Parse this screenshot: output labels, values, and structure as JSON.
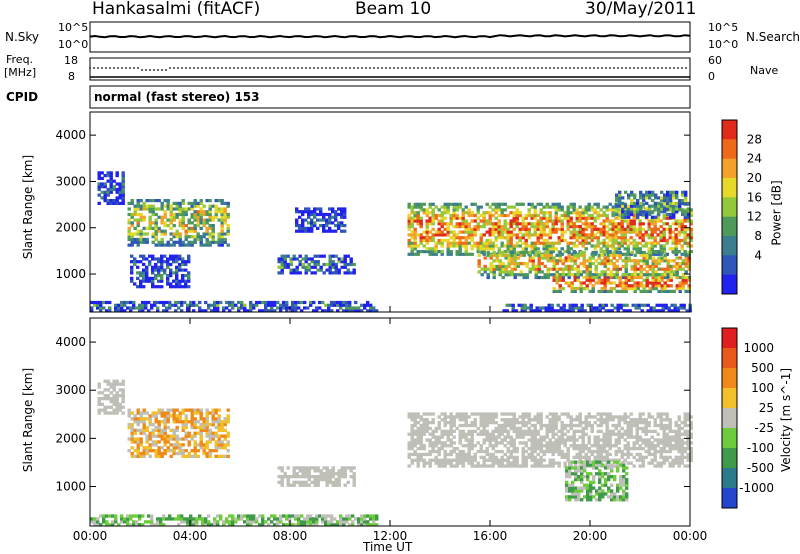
{
  "header": {
    "station": "Hankasalmi (fitACF)",
    "beam": "Beam 10",
    "date": "30/May/2011"
  },
  "panels": {
    "noise": {
      "left_label": "N.Sky",
      "right_label": "N.Search",
      "left_ticks": [
        "10^5",
        "10^0"
      ],
      "right_ticks": [
        "10^5",
        "10^0"
      ]
    },
    "freq": {
      "left_label_1": "Freq.",
      "left_label_2": "[MHz]",
      "right_label": "Nave",
      "left_ticks": [
        "18",
        "8"
      ],
      "right_ticks": [
        "60",
        "0"
      ]
    },
    "cpid": {
      "label": "CPID",
      "text": "normal (fast stereo) 153"
    }
  },
  "chart_data": [
    {
      "type": "heatmap",
      "name": "power",
      "xlabel": "",
      "ylabel": "Slant Range [km]",
      "x_range_hours": [
        0,
        24
      ],
      "ylim": [
        180,
        4500
      ],
      "y_ticks": [
        "4000",
        "3000",
        "2000",
        "1000"
      ],
      "colorbar": {
        "label": "Power [dB]",
        "ticks": [
          "28",
          "24",
          "20",
          "16",
          "12",
          "8",
          "4"
        ],
        "colors": [
          "#2222ee",
          "#2f55b8",
          "#3b7f8f",
          "#4f9a5a",
          "#93c83a",
          "#e7d92a",
          "#f2a12a",
          "#ee6a1a",
          "#e02a1a"
        ]
      },
      "echo_regions": [
        {
          "t0": 0.3,
          "t1": 1.3,
          "r0": 2500,
          "r1": 3200,
          "level": 0.15
        },
        {
          "t0": 1.5,
          "t1": 5.5,
          "r0": 1600,
          "r1": 2600,
          "level": 0.55
        },
        {
          "t0": 1.6,
          "t1": 4.0,
          "r0": 700,
          "r1": 1400,
          "level": 0.15
        },
        {
          "t0": 7.5,
          "t1": 10.5,
          "r0": 1000,
          "r1": 1400,
          "level": 0.25
        },
        {
          "t0": 8.2,
          "t1": 10.2,
          "r0": 1900,
          "r1": 2400,
          "level": 0.1
        },
        {
          "t0": 12.7,
          "t1": 24.0,
          "r0": 1400,
          "r1": 2500,
          "level": 0.75
        },
        {
          "t0": 15.5,
          "t1": 24.0,
          "r0": 900,
          "r1": 1500,
          "level": 0.65
        },
        {
          "t0": 18.5,
          "t1": 24.0,
          "r0": 600,
          "r1": 1000,
          "level": 0.8
        },
        {
          "t0": 21.0,
          "t1": 24.0,
          "r0": 2200,
          "r1": 2800,
          "level": 0.35
        },
        {
          "t0": 0.0,
          "t1": 11.5,
          "r0": 180,
          "r1": 420,
          "level": 0.2
        },
        {
          "t0": 16.5,
          "t1": 24.0,
          "r0": 180,
          "r1": 350,
          "level": 0.15
        }
      ]
    },
    {
      "type": "heatmap",
      "name": "velocity",
      "xlabel": "Time UT",
      "ylabel": "Slant Range [km]",
      "x_range_hours": [
        0,
        24
      ],
      "ylim": [
        180,
        4500
      ],
      "x_ticks": [
        "00:00",
        "04:00",
        "08:00",
        "12:00",
        "16:00",
        "20:00",
        "00:00"
      ],
      "y_ticks": [
        "4000",
        "3000",
        "2000",
        "1000"
      ],
      "colorbar": {
        "label": "Velocity [m s^-1]",
        "ticks": [
          "1000",
          "500",
          "100",
          "25",
          "-25",
          "-100",
          "-500",
          "-1000"
        ],
        "colors": [
          "#2545cc",
          "#2d7a8a",
          "#3f9a4a",
          "#6ccc3c",
          "#bfbfb8",
          "#f2c02a",
          "#ef8a1a",
          "#e85a1a",
          "#e02020"
        ]
      },
      "echo_regions": [
        {
          "t0": 0.3,
          "t1": 1.3,
          "r0": 2500,
          "r1": 3200,
          "level": "gray"
        },
        {
          "t0": 1.5,
          "t1": 5.5,
          "r0": 1600,
          "r1": 2600,
          "level": "orange"
        },
        {
          "t0": 7.5,
          "t1": 10.5,
          "r0": 1000,
          "r1": 1400,
          "level": "gray"
        },
        {
          "t0": 12.7,
          "t1": 24.0,
          "r0": 1400,
          "r1": 2500,
          "level": "gray"
        },
        {
          "t0": 19.0,
          "t1": 21.5,
          "r0": 700,
          "r1": 1500,
          "level": "green"
        },
        {
          "t0": 0.0,
          "t1": 11.5,
          "r0": 180,
          "r1": 420,
          "level": "green"
        }
      ]
    }
  ]
}
